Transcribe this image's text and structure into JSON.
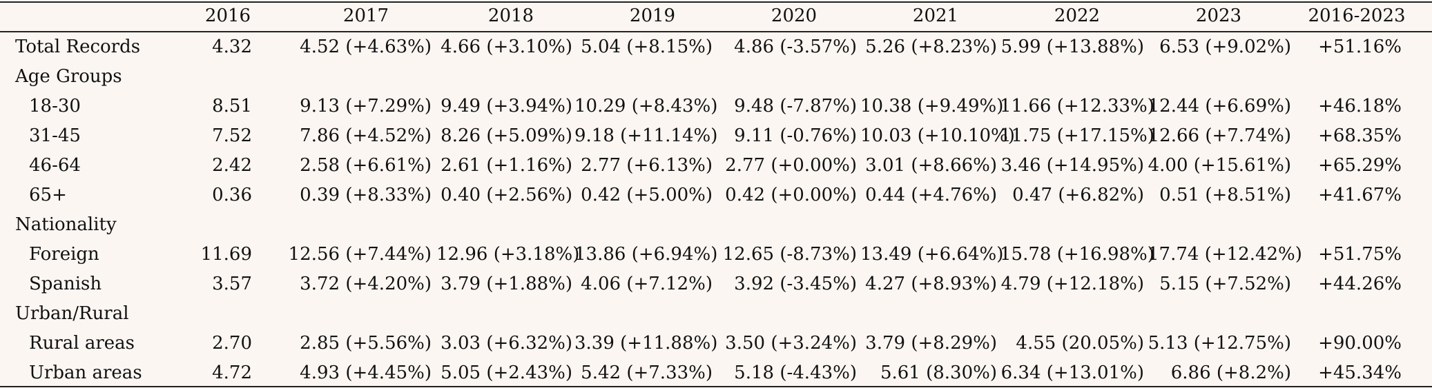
{
  "table": {
    "headers": [
      "",
      "2016",
      "2017",
      "2018",
      "2019",
      "2020",
      "2021",
      "2022",
      "2023",
      "2016-2023"
    ],
    "rows": [
      {
        "label": "Total Records",
        "indent": false,
        "values": [
          "4.32",
          "4.52 (+4.63%)",
          "4.66 (+3.10%)",
          "5.04 (+8.15%)",
          "4.86 (-3.57%)",
          "5.26 (+8.23%)",
          "5.99 (+13.88%)",
          "6.53 (+9.02%)",
          "+51.16%"
        ]
      },
      {
        "label": "Age Groups",
        "indent": false,
        "values": [
          "",
          "",
          "",
          "",
          "",
          "",
          "",
          "",
          ""
        ]
      },
      {
        "label": "18-30",
        "indent": true,
        "values": [
          "8.51",
          "9.13 (+7.29%)",
          "9.49 (+3.94%)",
          "10.29 (+8.43%)",
          "9.48 (-7.87%)",
          "10.38 (+9.49%)",
          "11.66 (+12.33%)",
          "12.44 (+6.69%)",
          "+46.18%"
        ]
      },
      {
        "label": "31-45",
        "indent": true,
        "values": [
          "7.52",
          "7.86 (+4.52%)",
          "8.26 (+5.09%)",
          "9.18 (+11.14%)",
          "9.11 (-0.76%)",
          "10.03 (+10.10%)",
          "11.75 (+17.15%)",
          "12.66 (+7.74%)",
          "+68.35%"
        ]
      },
      {
        "label": "46-64",
        "indent": true,
        "values": [
          "2.42",
          "2.58 (+6.61%)",
          "2.61 (+1.16%)",
          "2.77 (+6.13%)",
          "2.77 (+0.00%)",
          "3.01 (+8.66%)",
          "3.46 (+14.95%)",
          "4.00 (+15.61%)",
          "+65.29%"
        ]
      },
      {
        "label": "65+",
        "indent": true,
        "values": [
          "0.36",
          "0.39 (+8.33%)",
          "0.40 (+2.56%)",
          "0.42 (+5.00%)",
          "0.42 (+0.00%)",
          "0.44 (+4.76%)",
          "0.47 (+6.82%)",
          "0.51 (+8.51%)",
          "+41.67%"
        ]
      },
      {
        "label": "Nationality",
        "indent": false,
        "values": [
          "",
          "",
          "",
          "",
          "",
          "",
          "",
          "",
          ""
        ]
      },
      {
        "label": "Foreign",
        "indent": true,
        "values": [
          "11.69",
          "12.56 (+7.44%)",
          "12.96 (+3.18%)",
          "13.86 (+6.94%)",
          "12.65 (-8.73%)",
          "13.49 (+6.64%)",
          "15.78 (+16.98%)",
          "17.74 (+12.42%)",
          "+51.75%"
        ]
      },
      {
        "label": "Spanish",
        "indent": true,
        "values": [
          "3.57",
          "3.72 (+4.20%)",
          "3.79 (+1.88%)",
          "4.06 (+7.12%)",
          "3.92 (-3.45%)",
          "4.27 (+8.93%)",
          "4.79 (+12.18%)",
          "5.15 (+7.52%)",
          "+44.26%"
        ]
      },
      {
        "label": "Urban/Rural",
        "indent": false,
        "values": [
          "",
          "",
          "",
          "",
          "",
          "",
          "",
          "",
          ""
        ]
      },
      {
        "label": "Rural areas",
        "indent": true,
        "values": [
          "2.70",
          "2.85 (+5.56%)",
          "3.03 (+6.32%)",
          "3.39 (+11.88%)",
          "3.50 (+3.24%)",
          "3.79 (+8.29%)",
          "4.55 (20.05%)",
          "5.13 (+12.75%)",
          "+90.00%"
        ]
      },
      {
        "label": "Urban areas",
        "indent": true,
        "values": [
          "4.72",
          "4.93 (+4.45%)",
          "5.05 (+2.43%)",
          "5.42 (+7.33%)",
          "5.18 (-4.43%)",
          "5.61 (8.30%)",
          "6.34 (+13.01%)",
          "6.86 (+8.2%)",
          "+45.34%"
        ]
      }
    ]
  }
}
